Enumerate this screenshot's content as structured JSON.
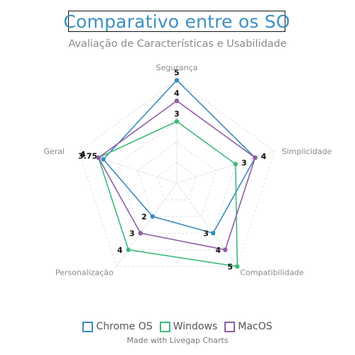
{
  "chart_data": {
    "type": "radar",
    "title": "Comparativo entre os SO",
    "subtitle": "Avaliação de Características e Usabilidade",
    "categories": [
      "Segurança",
      "Simplicidade",
      "Compatibilidade",
      "Personalização",
      "Geral"
    ],
    "range": [
      0,
      5
    ],
    "grid": true,
    "legend_position": "bottom-center",
    "series": [
      {
        "name": "Chrome OS",
        "color": "#3a8cc0",
        "values": [
          5,
          4,
          3,
          2,
          3.75
        ]
      },
      {
        "name": "Windows",
        "color": "#3dbb7a",
        "values": [
          3,
          3,
          5,
          4,
          4
        ]
      },
      {
        "name": "MacOS",
        "color": "#8e5ea4",
        "values": [
          4,
          4,
          4,
          3,
          4
        ]
      }
    ]
  },
  "credit": "Made with Livegap Charts"
}
